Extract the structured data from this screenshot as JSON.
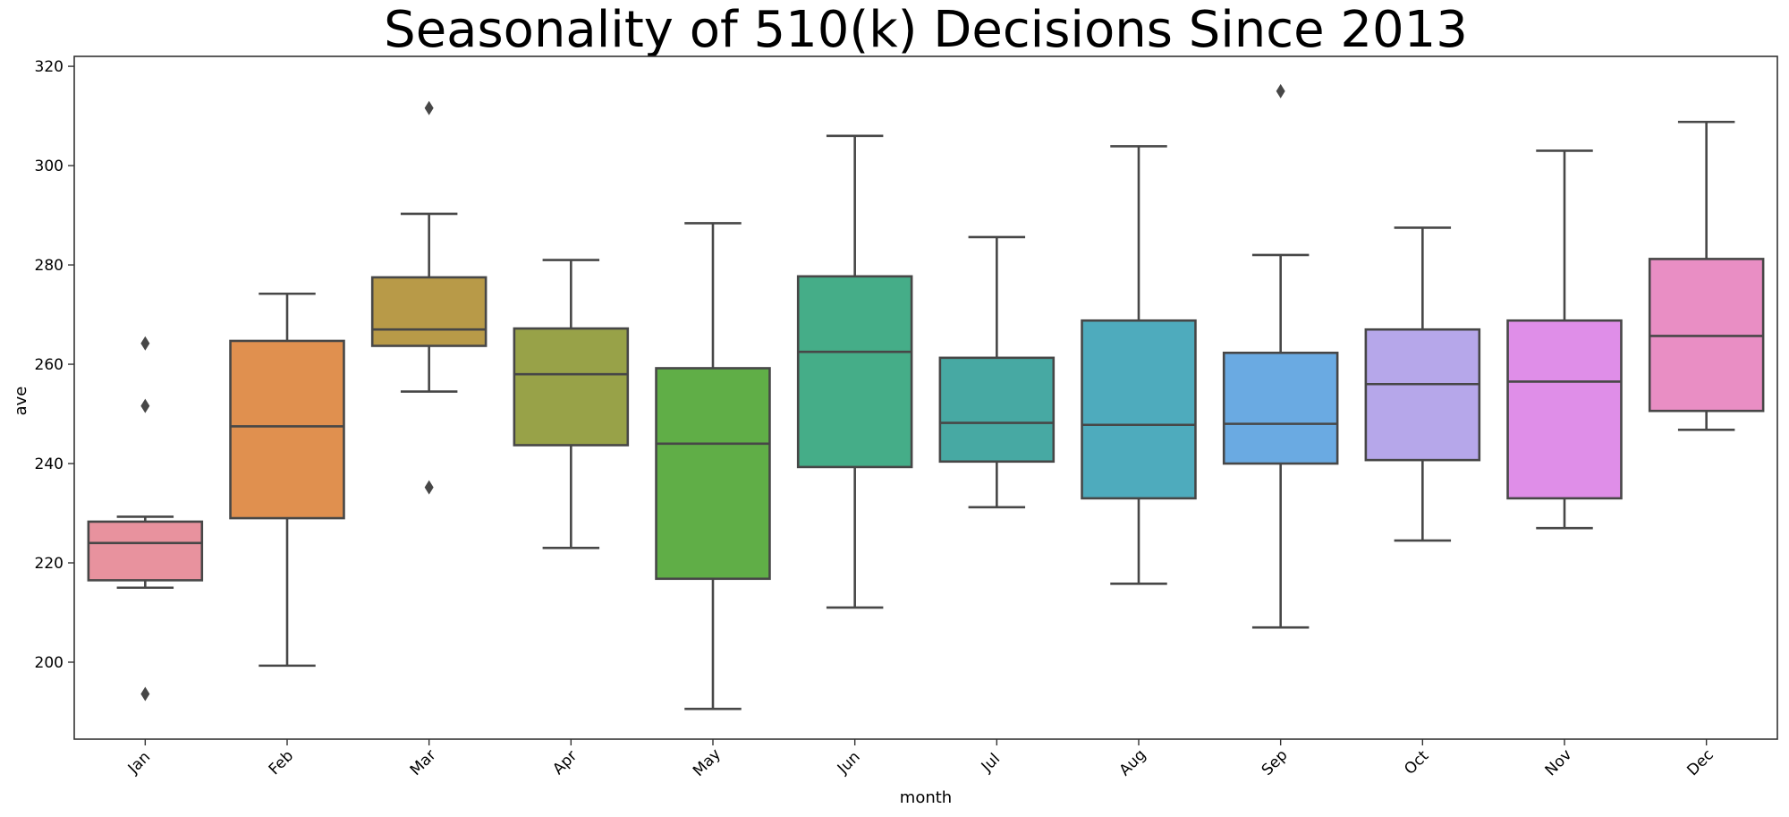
{
  "chart_data": {
    "type": "box",
    "title": "Seasonality of 510(k) Decisions Since 2013",
    "xlabel": "month",
    "ylabel": "ave",
    "ylim": [
      184.5,
      322
    ],
    "yticks": [
      200,
      220,
      240,
      260,
      280,
      300,
      320
    ],
    "grid": false,
    "categories": [
      "Jan",
      "Feb",
      "Mar",
      "Apr",
      "May",
      "Jun",
      "Jul",
      "Aug",
      "Sep",
      "Oct",
      "Nov",
      "Dec"
    ],
    "boxes": [
      {
        "month": "Jan",
        "whislo": 215.0,
        "q1": 216.5,
        "median": 224.0,
        "q3": 228.3,
        "whishi": 229.3,
        "fliers": [
          264.2,
          251.6,
          193.6
        ],
        "color": "#e8929e"
      },
      {
        "month": "Feb",
        "whislo": 199.3,
        "q1": 229.0,
        "median": 247.5,
        "q3": 264.7,
        "whishi": 274.2,
        "fliers": [],
        "color": "#e0904f"
      },
      {
        "month": "Mar",
        "whislo": 254.5,
        "q1": 263.7,
        "median": 267.0,
        "q3": 277.5,
        "whishi": 290.3,
        "fliers": [
          311.6,
          235.2
        ],
        "color": "#b89a48"
      },
      {
        "month": "Apr",
        "whislo": 223.0,
        "q1": 243.7,
        "median": 258.0,
        "q3": 267.2,
        "whishi": 281.0,
        "fliers": [],
        "color": "#98a248"
      },
      {
        "month": "May",
        "whislo": 190.6,
        "q1": 216.8,
        "median": 244.0,
        "q3": 259.2,
        "whishi": 288.4,
        "fliers": [],
        "color": "#60ae47"
      },
      {
        "month": "Jun",
        "whislo": 211.0,
        "q1": 239.3,
        "median": 262.5,
        "q3": 277.7,
        "whishi": 306.0,
        "fliers": [],
        "color": "#45ad88"
      },
      {
        "month": "Jul",
        "whislo": 231.2,
        "q1": 240.4,
        "median": 248.2,
        "q3": 261.3,
        "whishi": 285.6,
        "fliers": [],
        "color": "#47a9a3"
      },
      {
        "month": "Aug",
        "whislo": 215.8,
        "q1": 233.0,
        "median": 247.8,
        "q3": 268.8,
        "whishi": 303.9,
        "fliers": [],
        "color": "#4eabbd"
      },
      {
        "month": "Sep",
        "whislo": 207.0,
        "q1": 240.0,
        "median": 248.0,
        "q3": 262.3,
        "whishi": 282.0,
        "fliers": [
          315.0
        ],
        "color": "#6aaae2"
      },
      {
        "month": "Oct",
        "whislo": 224.5,
        "q1": 240.7,
        "median": 256.0,
        "q3": 267.0,
        "whishi": 287.5,
        "fliers": [],
        "color": "#b6a7ea"
      },
      {
        "month": "Nov",
        "whislo": 227.0,
        "q1": 233.0,
        "median": 256.5,
        "q3": 268.8,
        "whishi": 303.0,
        "fliers": [],
        "color": "#df8ee8"
      },
      {
        "month": "Dec",
        "whislo": 246.8,
        "q1": 250.6,
        "median": 265.7,
        "q3": 281.2,
        "whishi": 308.8,
        "fliers": [],
        "color": "#e98ec4"
      }
    ],
    "line_color": "#474747"
  }
}
